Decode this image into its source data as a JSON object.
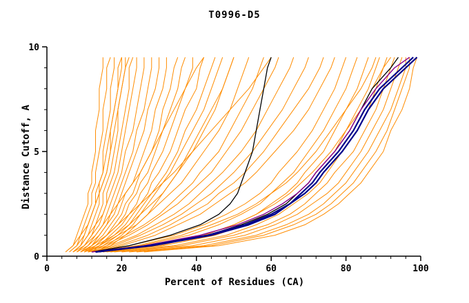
{
  "chart_data": {
    "type": "line",
    "title": "T0996-D5",
    "xlabel": "Percent of Residues (CA)",
    "ylabel": "Distance Cutoff, A",
    "xlim": [
      0,
      100
    ],
    "ylim": [
      0,
      10
    ],
    "x_major_ticks": [
      0,
      20,
      40,
      60,
      80,
      100
    ],
    "x_minor_step": 4,
    "y_major_ticks": [
      0,
      5,
      10
    ],
    "y_minor_step": 1,
    "grid": false,
    "legend": "none",
    "y_levels": [
      0.2,
      0.5,
      1,
      1.5,
      2,
      2.5,
      3,
      3.5,
      4,
      5,
      6,
      7,
      8,
      9,
      9.5
    ],
    "line_groups": [
      {
        "name": "prediction-models-orange",
        "color": "#ff8c00",
        "width": 1,
        "curves": [
          [
            5,
            7,
            8,
            9,
            10,
            11,
            11,
            12,
            12,
            13,
            13,
            14,
            14,
            15,
            15
          ],
          [
            6,
            8,
            9,
            10,
            11,
            12,
            12,
            13,
            13,
            14,
            15,
            15,
            16,
            16,
            17
          ],
          [
            6,
            8,
            10,
            11,
            12,
            13,
            13,
            14,
            15,
            15,
            16,
            17,
            17,
            18,
            18
          ],
          [
            7,
            9,
            11,
            12,
            13,
            14,
            14,
            15,
            16,
            17,
            17,
            18,
            19,
            19,
            20
          ],
          [
            7,
            9,
            11,
            13,
            14,
            15,
            15,
            16,
            17,
            18,
            19,
            19,
            20,
            21,
            21
          ],
          [
            7,
            10,
            12,
            13,
            15,
            16,
            16,
            17,
            18,
            19,
            20,
            21,
            22,
            22,
            23
          ],
          [
            8,
            10,
            12,
            14,
            15,
            16,
            17,
            18,
            19,
            20,
            21,
            22,
            23,
            24,
            24
          ],
          [
            8,
            11,
            13,
            15,
            16,
            17,
            18,
            19,
            20,
            21,
            23,
            24,
            25,
            26,
            26
          ],
          [
            9,
            11,
            14,
            16,
            17,
            18,
            19,
            20,
            21,
            23,
            24,
            26,
            27,
            28,
            28
          ],
          [
            9,
            12,
            14,
            16,
            18,
            19,
            20,
            21,
            22,
            24,
            26,
            27,
            29,
            30,
            30
          ],
          [
            10,
            12,
            15,
            17,
            19,
            20,
            21,
            23,
            24,
            26,
            28,
            29,
            31,
            32,
            32
          ],
          [
            10,
            13,
            16,
            18,
            20,
            21,
            23,
            24,
            25,
            28,
            30,
            31,
            33,
            34,
            35
          ],
          [
            11,
            13,
            16,
            19,
            21,
            22,
            24,
            25,
            27,
            29,
            31,
            33,
            35,
            36,
            37
          ],
          [
            11,
            14,
            17,
            20,
            22,
            24,
            25,
            27,
            28,
            31,
            33,
            35,
            37,
            39,
            39
          ],
          [
            12,
            14,
            18,
            21,
            23,
            25,
            27,
            28,
            30,
            33,
            35,
            37,
            40,
            41,
            42
          ],
          [
            12,
            15,
            19,
            22,
            24,
            26,
            28,
            30,
            32,
            35,
            37,
            40,
            42,
            44,
            45
          ],
          [
            13,
            16,
            20,
            23,
            25,
            27,
            29,
            31,
            33,
            36,
            39,
            42,
            44,
            46,
            47
          ],
          [
            13,
            17,
            21,
            24,
            27,
            29,
            31,
            33,
            35,
            38,
            41,
            44,
            47,
            49,
            50
          ],
          [
            9,
            13,
            18,
            22,
            25,
            28,
            31,
            33,
            35,
            39,
            42,
            45,
            47,
            49,
            50
          ],
          [
            10,
            14,
            19,
            24,
            27,
            30,
            33,
            36,
            38,
            42,
            46,
            49,
            51,
            53,
            54
          ],
          [
            10,
            15,
            21,
            26,
            30,
            33,
            36,
            39,
            41,
            46,
            49,
            52,
            55,
            57,
            58
          ],
          [
            11,
            16,
            22,
            27,
            31,
            35,
            38,
            41,
            44,
            48,
            52,
            55,
            58,
            61,
            62
          ],
          [
            12,
            17,
            24,
            29,
            34,
            38,
            41,
            44,
            47,
            52,
            56,
            59,
            62,
            65,
            66
          ],
          [
            12,
            18,
            25,
            31,
            36,
            40,
            44,
            47,
            50,
            55,
            59,
            63,
            66,
            69,
            70
          ],
          [
            13,
            19,
            27,
            33,
            38,
            43,
            46,
            50,
            53,
            58,
            62,
            66,
            70,
            73,
            74
          ],
          [
            14,
            20,
            29,
            35,
            41,
            45,
            49,
            53,
            56,
            61,
            66,
            70,
            73,
            76,
            77
          ],
          [
            11,
            22,
            34,
            42,
            48,
            53,
            57,
            60,
            62,
            67,
            71,
            74,
            77,
            79,
            80
          ],
          [
            12,
            25,
            38,
            46,
            52,
            57,
            60,
            63,
            66,
            70,
            74,
            77,
            80,
            82,
            83
          ],
          [
            14,
            28,
            42,
            50,
            56,
            60,
            64,
            67,
            69,
            74,
            77,
            80,
            83,
            85,
            86
          ],
          [
            15,
            31,
            45,
            53,
            59,
            64,
            67,
            70,
            72,
            77,
            80,
            83,
            86,
            88,
            89
          ],
          [
            17,
            34,
            48,
            56,
            62,
            66,
            70,
            73,
            75,
            79,
            83,
            86,
            88,
            90,
            91
          ],
          [
            18,
            36,
            50,
            59,
            65,
            69,
            72,
            75,
            77,
            82,
            85,
            88,
            90,
            92,
            93
          ],
          [
            20,
            39,
            53,
            61,
            67,
            71,
            75,
            78,
            80,
            84,
            87,
            90,
            92,
            94,
            95
          ],
          [
            22,
            42,
            56,
            64,
            70,
            74,
            77,
            80,
            82,
            86,
            89,
            92,
            94,
            96,
            96
          ],
          [
            24,
            44,
            58,
            66,
            72,
            76,
            79,
            82,
            84,
            88,
            91,
            93,
            95,
            97,
            97
          ],
          [
            26,
            46,
            61,
            69,
            74,
            78,
            81,
            84,
            86,
            90,
            92,
            95,
            97,
            98,
            99
          ],
          [
            16,
            30,
            42,
            50,
            56,
            61,
            65,
            68,
            71,
            76,
            80,
            84,
            87,
            90,
            92
          ],
          [
            13,
            24,
            36,
            44,
            51,
            56,
            60,
            64,
            67,
            72,
            76,
            80,
            84,
            87,
            88
          ],
          [
            5,
            7,
            9,
            11,
            12,
            13,
            14,
            15,
            16,
            17,
            18,
            19,
            20,
            21,
            22
          ],
          [
            8,
            10,
            13,
            15,
            17,
            19,
            21,
            23,
            25,
            28,
            31,
            34,
            37,
            40,
            42
          ],
          [
            9,
            12,
            16,
            19,
            22,
            25,
            28,
            31,
            34,
            39,
            44,
            49,
            54,
            58,
            60
          ],
          [
            7,
            9,
            10,
            11,
            12,
            13,
            14,
            14,
            15,
            16,
            17,
            18,
            19,
            20,
            20
          ]
        ]
      },
      {
        "name": "reference-black",
        "color": "#000000",
        "width": 1.3,
        "curves": [
          [
            12,
            22,
            33,
            41,
            46,
            49,
            51,
            52,
            53,
            55,
            56,
            57,
            58,
            59,
            60
          ],
          [
            14,
            28,
            43,
            52,
            59,
            64,
            67,
            70,
            72,
            77,
            81,
            84,
            87,
            92,
            94
          ]
        ]
      },
      {
        "name": "reference-purple",
        "color": "#8b008b",
        "width": 1.4,
        "curves": [
          [
            12,
            26,
            41,
            51,
            58,
            63,
            67,
            70,
            72,
            77,
            81,
            84,
            88,
            93,
            97
          ]
        ]
      },
      {
        "name": "best-model-blue",
        "color": "#00008b",
        "width": 2.2,
        "curves": [
          [
            13,
            27,
            43,
            53,
            60,
            65,
            68,
            71,
            73,
            78,
            82,
            85,
            89,
            95,
            98
          ],
          [
            13,
            28,
            44,
            54,
            61,
            65,
            69,
            72,
            74,
            79,
            83,
            86,
            90,
            96,
            99
          ]
        ]
      }
    ]
  }
}
